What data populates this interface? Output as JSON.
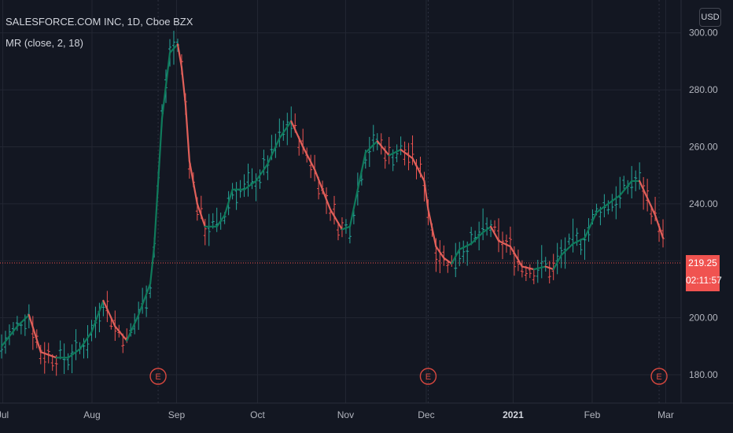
{
  "header": {
    "title": "SALESFORCE.COM INC, 1D, Cboe BZX",
    "indicator": "MR (close, 2, 18)",
    "currency": "USD"
  },
  "current": {
    "price": "219.25",
    "countdown": "02:11:57"
  },
  "colors": {
    "background": "#131722",
    "grid": "#232733",
    "up": "#26a69a",
    "down": "#ef5350",
    "mr_up": "#0f7a5b",
    "mr_down": "#e0605a",
    "earnings": "#d9483f"
  },
  "chart_data": {
    "type": "line",
    "ylim": [
      172,
      306
    ],
    "y_ticks": [
      180,
      200,
      220,
      240,
      260,
      280,
      300
    ],
    "y_tick_labels": [
      "180.00",
      "200.00",
      "220.00",
      "240.00",
      "260.00",
      "280.00",
      "300.00"
    ],
    "x_ticks": [
      {
        "label": "Jul",
        "idx": 0.3,
        "bold": false
      },
      {
        "label": "Aug",
        "idx": 23.1,
        "bold": false
      },
      {
        "label": "Sep",
        "idx": 44.7,
        "bold": false
      },
      {
        "label": "Oct",
        "idx": 65.4,
        "bold": false
      },
      {
        "label": "Nov",
        "idx": 87.9,
        "bold": false
      },
      {
        "label": "Dec",
        "idx": 108.5,
        "bold": false
      },
      {
        "label": "2021",
        "idx": 130.7,
        "bold": true
      },
      {
        "label": "Feb",
        "idx": 150.9,
        "bold": false
      },
      {
        "label": "Mar",
        "idx": 169.7,
        "bold": false
      }
    ],
    "earnings": [
      {
        "idx": 40,
        "label": "E"
      },
      {
        "idx": 109,
        "label": "E"
      },
      {
        "idx": 168,
        "label": "E"
      }
    ],
    "last_price": 219.25,
    "series": [
      {
        "name": "MR (close, 2, 18)",
        "values": [
          [
            0,
            190
          ],
          [
            4,
            197
          ],
          [
            7,
            201
          ],
          [
            10,
            188
          ],
          [
            14,
            186
          ],
          [
            17,
            186
          ],
          [
            20,
            189
          ],
          [
            23,
            195
          ],
          [
            26,
            206
          ],
          [
            29,
            197
          ],
          [
            32,
            192
          ],
          [
            35,
            201
          ],
          [
            38,
            212
          ],
          [
            39,
            225
          ],
          [
            41,
            270
          ],
          [
            43,
            293
          ],
          [
            45,
            296
          ],
          [
            46,
            288
          ],
          [
            47,
            275
          ],
          [
            48,
            255
          ],
          [
            50,
            240
          ],
          [
            52,
            232
          ],
          [
            55,
            232
          ],
          [
            57,
            236
          ],
          [
            59,
            245
          ],
          [
            62,
            245
          ],
          [
            65,
            248
          ],
          [
            68,
            254
          ],
          [
            71,
            263
          ],
          [
            74,
            269
          ],
          [
            77,
            260
          ],
          [
            80,
            252
          ],
          [
            84,
            238
          ],
          [
            87,
            231
          ],
          [
            89,
            232
          ],
          [
            91,
            245
          ],
          [
            93,
            258
          ],
          [
            96,
            262
          ],
          [
            99,
            257
          ],
          [
            102,
            259
          ],
          [
            105,
            256
          ],
          [
            108,
            248
          ],
          [
            109,
            238
          ],
          [
            111,
            225
          ],
          [
            113,
            221
          ],
          [
            115,
            219
          ],
          [
            117,
            224
          ],
          [
            120,
            226
          ],
          [
            123,
            230
          ],
          [
            125,
            232
          ],
          [
            127,
            227
          ],
          [
            130,
            225
          ],
          [
            133,
            218
          ],
          [
            136,
            217
          ],
          [
            139,
            218
          ],
          [
            141,
            217
          ],
          [
            143,
            222
          ],
          [
            146,
            226
          ],
          [
            149,
            228
          ],
          [
            152,
            237
          ],
          [
            155,
            240
          ],
          [
            158,
            243
          ],
          [
            161,
            248
          ],
          [
            163,
            248
          ],
          [
            165,
            242
          ],
          [
            167,
            236
          ],
          [
            169,
            228
          ]
        ]
      }
    ]
  }
}
